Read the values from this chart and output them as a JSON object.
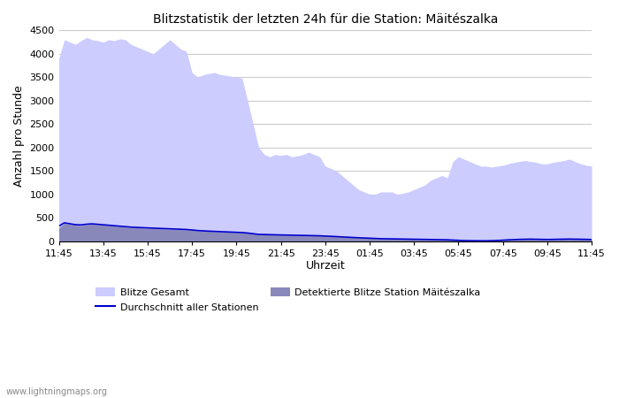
{
  "title": "Blitzstatistik der letzten 24h für die Station: Mäitészalka",
  "xlabel": "Uhrzeit",
  "ylabel": "Anzahl pro Stunde",
  "x_ticks": [
    "11:45",
    "13:45",
    "15:45",
    "17:45",
    "19:45",
    "21:45",
    "23:45",
    "01:45",
    "03:45",
    "05:45",
    "07:45",
    "09:45",
    "11:45"
  ],
  "ylim": [
    0,
    4500
  ],
  "yticks": [
    0,
    500,
    1000,
    1500,
    2000,
    2500,
    3000,
    3500,
    4000,
    4500
  ],
  "bg_color": "#ffffff",
  "plot_bg_color": "#ffffff",
  "grid_color": "#cccccc",
  "fill_gesamt_color": "#ccccff",
  "fill_station_color": "#8888bb",
  "line_avg_color": "#0000cc",
  "watermark": "www.lightningmaps.org",
  "legend": {
    "blitze_gesamt": "Blitze Gesamt",
    "detektierte": "Detektierte Blitze Station Mäitészalka",
    "durchschnitt": "Durchschnitt aller Stationen"
  },
  "gesamt_y": [
    3900,
    4300,
    4250,
    4200,
    4280,
    4350,
    4300,
    4280,
    4250,
    4300,
    4280,
    4320,
    4300,
    4200,
    4150,
    4100,
    4050,
    4000,
    4100,
    4200,
    4300,
    4200,
    4100,
    4050,
    3600,
    3500,
    3550,
    3580,
    3600,
    3560,
    3540,
    3520,
    3500,
    3480,
    3000,
    2500,
    2000,
    1850,
    1800,
    1850,
    1830,
    1850,
    1800,
    1820,
    1850,
    1900,
    1850,
    1800,
    1600,
    1550,
    1500,
    1400,
    1300,
    1200,
    1100,
    1050,
    1000,
    1000,
    1050,
    1050,
    1050,
    1000,
    1020,
    1050,
    1100,
    1150,
    1200,
    1300,
    1350,
    1400,
    1350,
    1700,
    1800,
    1750,
    1700,
    1650,
    1600,
    1600,
    1580,
    1600,
    1620,
    1650,
    1680,
    1700,
    1720,
    1700,
    1680,
    1650,
    1650,
    1680,
    1700,
    1720,
    1750,
    1700,
    1650,
    1620,
    1600
  ],
  "station_y": [
    280,
    380,
    360,
    340,
    330,
    350,
    360,
    350,
    340,
    330,
    320,
    310,
    300,
    290,
    285,
    280,
    275,
    270,
    265,
    260,
    255,
    250,
    245,
    240,
    230,
    220,
    215,
    210,
    205,
    200,
    195,
    190,
    185,
    180,
    170,
    155,
    140,
    138,
    135,
    132,
    130,
    128,
    125,
    122,
    120,
    118,
    115,
    112,
    105,
    100,
    95,
    88,
    82,
    76,
    70,
    65,
    60,
    55,
    50,
    48,
    46,
    44,
    42,
    40,
    38,
    36,
    34,
    32,
    30,
    28,
    26,
    20,
    15,
    10,
    8,
    6,
    5,
    5,
    8,
    12,
    18,
    25,
    30,
    35,
    38,
    40,
    38,
    35,
    33,
    35,
    38,
    40,
    42,
    40,
    38,
    35,
    32
  ],
  "avg_y": [
    320,
    390,
    370,
    350,
    345,
    360,
    368,
    358,
    348,
    338,
    328,
    318,
    308,
    298,
    292,
    287,
    282,
    277,
    272,
    267,
    262,
    257,
    252,
    247,
    237,
    225,
    218,
    212,
    207,
    202,
    197,
    192,
    187,
    182,
    172,
    157,
    143,
    140,
    137,
    134,
    131,
    129,
    126,
    123,
    121,
    119,
    116,
    113,
    107,
    102,
    96,
    89,
    83,
    77,
    71,
    66,
    61,
    56,
    51,
    49,
    47,
    45,
    43,
    41,
    39,
    37,
    35,
    33,
    31,
    29,
    27,
    21,
    16,
    11,
    9,
    7,
    6,
    6,
    9,
    13,
    19,
    26,
    31,
    36,
    39,
    41,
    39,
    36,
    34,
    36,
    39,
    41,
    43,
    41,
    39,
    36,
    33
  ]
}
